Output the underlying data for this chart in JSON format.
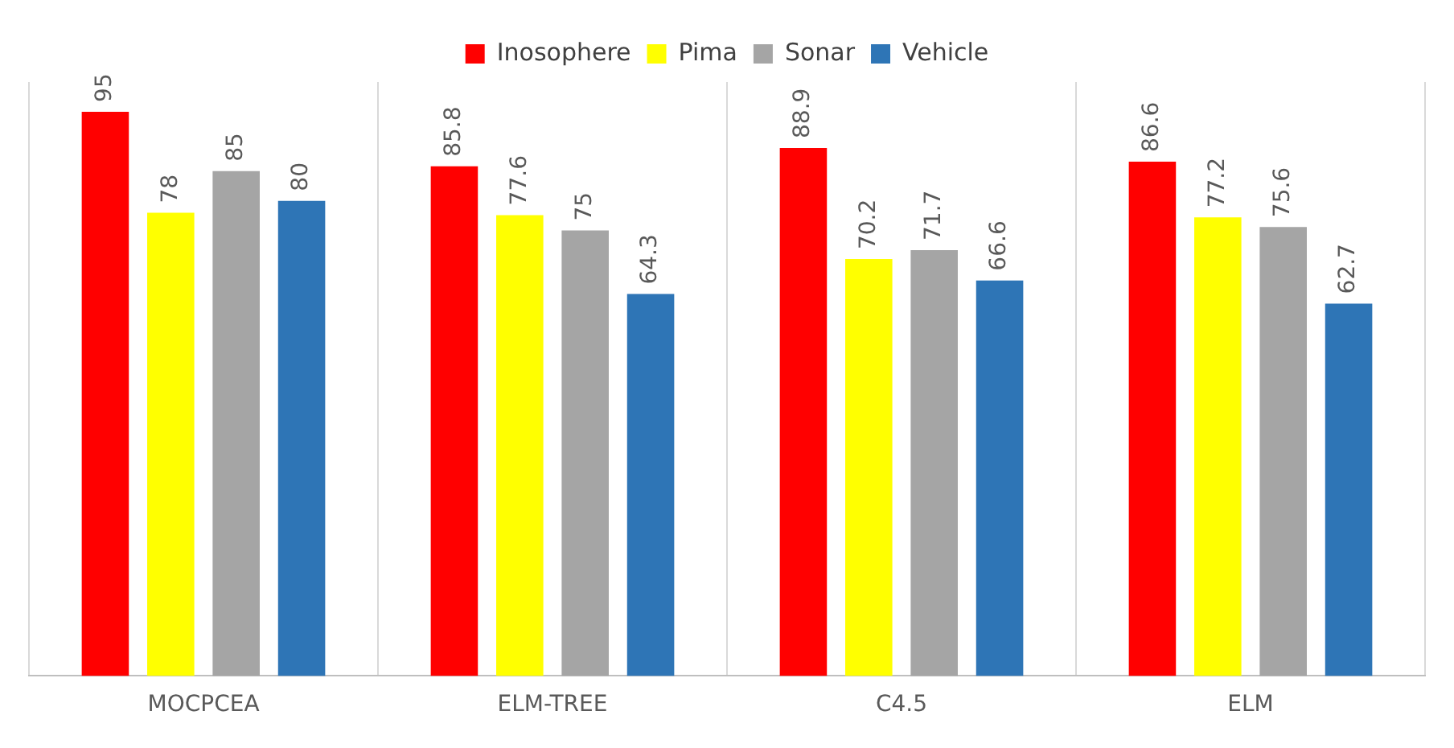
{
  "chart_data": {
    "type": "bar",
    "categories": [
      "MOCPCEA",
      "ELM-TREE",
      "C4.5",
      "ELM"
    ],
    "series": [
      {
        "name": "Inosophere",
        "color": "#ff0000",
        "values": [
          95,
          85.8,
          88.9,
          86.6
        ]
      },
      {
        "name": "Pima",
        "color": "#ffff00",
        "values": [
          78,
          77.6,
          70.2,
          77.2
        ]
      },
      {
        "name": "Sonar",
        "color": "#a5a5a5",
        "values": [
          85,
          75,
          71.7,
          75.6
        ]
      },
      {
        "name": "Vehicle",
        "color": "#2e75b6",
        "values": [
          80,
          64.3,
          66.6,
          62.7
        ]
      }
    ],
    "ylim": [
      0,
      100
    ],
    "grid": "x",
    "legend": "top",
    "data_labels": true,
    "tick_labels": "x"
  }
}
